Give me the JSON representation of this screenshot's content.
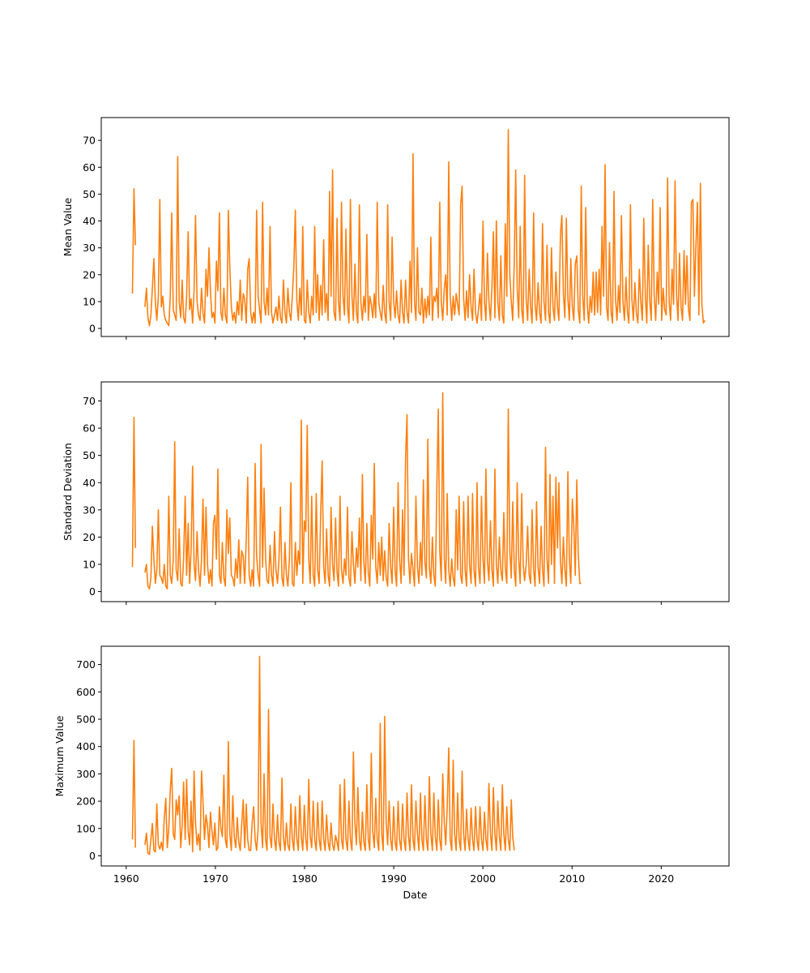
{
  "chart_data": {
    "type": "line",
    "shared_x_axis": true,
    "x_axis": {
      "xlabel": "Date",
      "xlim": [
        1957.2,
        2027.6
      ],
      "xticks": [
        1960,
        1970,
        1980,
        1990,
        2000,
        2010,
        2020
      ]
    },
    "line_color": "#ff7f0e",
    "grid": false,
    "series_sampling": "approximate monthly values, one point every 2 months",
    "panels": [
      {
        "ylabel": "Mean Value",
        "ylim": [
          -3,
          78.5
        ],
        "yticks": [
          0,
          10,
          20,
          30,
          40,
          50,
          60,
          70
        ],
        "segments": [
          {
            "x_start": 1960.7,
            "x_step": 0.167,
            "values": [
              13,
              52,
              31
            ]
          },
          {
            "x_start": 1962.1,
            "x_step": 0.167,
            "values": [
              8,
              15,
              4,
              1,
              5,
              15,
              26,
              10,
              3,
              12,
              48,
              8,
              12,
              5,
              3,
              2,
              1,
              12,
              43,
              7,
              5,
              3,
              64,
              10,
              4,
              18,
              4,
              2,
              12,
              36,
              7,
              11,
              2,
              14,
              42,
              10,
              5,
              3,
              15,
              6,
              2,
              22,
              12,
              30,
              14,
              4,
              6,
              2,
              25,
              14,
              43,
              6,
              3,
              15,
              5,
              2,
              44,
              23,
              8,
              3,
              6,
              2,
              10,
              5,
              18,
              3,
              13,
              11,
              2,
              22,
              26,
              6,
              2,
              6,
              2,
              44,
              12,
              7,
              2,
              47,
              10,
              5,
              15,
              5,
              38,
              6,
              2,
              5,
              8,
              3,
              12,
              4,
              2,
              18,
              6,
              2,
              15,
              6,
              3,
              12,
              23,
              44,
              10,
              3,
              15,
              5,
              38,
              3,
              2,
              18,
              6,
              2,
              12,
              5,
              38,
              6,
              20,
              3,
              16,
              5,
              33,
              6,
              13,
              3,
              51,
              12,
              59,
              6,
              3,
              41,
              10,
              3,
              47,
              12,
              5,
              37,
              8,
              2,
              48,
              12,
              3,
              24,
              6,
              2,
              46,
              10,
              3,
              12,
              6,
              35,
              3,
              12,
              9,
              4,
              13,
              4,
              47,
              10,
              6,
              3,
              16,
              6,
              2,
              46,
              10,
              3,
              34,
              10,
              4,
              14,
              5,
              2,
              18,
              6,
              2,
              18,
              6,
              2,
              25,
              6,
              65,
              10,
              3,
              30,
              6,
              5,
              15,
              2,
              11,
              4,
              12,
              5,
              34,
              3,
              12,
              10,
              15,
              4,
              47,
              10,
              3,
              15,
              20,
              5,
              62,
              12,
              3,
              12,
              5,
              13,
              9,
              5,
              46,
              53,
              11,
              3,
              14,
              4,
              20,
              8,
              3,
              22,
              6,
              2,
              7,
              13,
              3,
              40,
              10,
              3,
              28,
              10,
              3,
              15,
              36,
              4,
              40,
              10,
              3,
              27,
              5,
              2,
              39,
              12,
              74,
              20,
              10,
              3,
              25,
              59,
              15,
              4,
              38,
              7,
              2,
              57,
              11,
              3,
              22,
              8,
              2,
              43,
              9,
              3,
              17,
              6,
              2,
              39,
              10,
              3,
              31,
              6,
              2,
              30,
              8,
              3,
              21,
              8,
              3,
              35,
              42,
              13,
              4,
              41,
              11,
              3,
              26,
              8,
              3,
              24,
              27,
              7,
              2,
              53,
              12,
              3,
              45,
              9,
              2,
              12,
              6,
              21,
              5,
              21,
              6,
              22,
              5,
              38,
              12,
              61,
              8,
              3,
              32,
              6,
              2,
              51,
              11,
              3,
              16,
              6,
              42,
              10,
              3,
              19,
              6,
              2,
              46,
              11,
              3,
              17,
              6,
              2,
              22,
              10,
              3,
              41,
              12,
              2,
              31,
              10,
              3,
              48,
              12,
              3,
              21,
              9,
              45,
              3,
              15,
              7,
              5,
              56,
              10,
              3,
              22,
              9,
              55,
              12,
              3,
              28,
              8,
              3,
              29,
              9,
              27,
              7,
              3,
              47,
              48,
              12,
              31,
              47,
              5,
              54,
              9,
              2,
              3
            ]
          }
        ]
      },
      {
        "ylabel": "Standard Deviation",
        "ylim": [
          -3.7,
          77
        ],
        "yticks": [
          0,
          10,
          20,
          30,
          40,
          50,
          60,
          70
        ],
        "segments": [
          {
            "x_start": 1960.7,
            "x_step": 0.167,
            "values": [
              9,
              64,
              16
            ]
          },
          {
            "x_start": 1962.1,
            "x_step": 0.167,
            "values": [
              7,
              10,
              2,
              1,
              5,
              24,
              12,
              3,
              8,
              30,
              6,
              5,
              3,
              10,
              2,
              1,
              35,
              6,
              3,
              12,
              55,
              8,
              4,
              23,
              3,
              2,
              12,
              35,
              6,
              25,
              3,
              15,
              46,
              10,
              4,
              22,
              8,
              2,
              12,
              34,
              6,
              31,
              10,
              3,
              8,
              2,
              25,
              28,
              12,
              45,
              6,
              3,
              18,
              5,
              2,
              30,
              14,
              27,
              6,
              5,
              2,
              12,
              5,
              19,
              3,
              15,
              13,
              3,
              19,
              42,
              6,
              2,
              8,
              2,
              47,
              13,
              6,
              2,
              54,
              9,
              38,
              12,
              4,
              3,
              17,
              6,
              2,
              22,
              8,
              3,
              12,
              31,
              5,
              2,
              18,
              6,
              2,
              12,
              40,
              3,
              2,
              18,
              6,
              15,
              10,
              63,
              3,
              26,
              22,
              61,
              12,
              3,
              35,
              6,
              2,
              36,
              8,
              3,
              28,
              48,
              9,
              3,
              23,
              6,
              2,
              31,
              10,
              4,
              27,
              7,
              2,
              35,
              8,
              3,
              12,
              6,
              31,
              5,
              2,
              22,
              10,
              3,
              16,
              9,
              27,
              4,
              43,
              11,
              3,
              25,
              7,
              2,
              28,
              12,
              47,
              9,
              3,
              18,
              6,
              20,
              4,
              15,
              5,
              2,
              25,
              9,
              3,
              31,
              8,
              2,
              40,
              12,
              3,
              30,
              6,
              49,
              65,
              12,
              3,
              14,
              8,
              2,
              35,
              9,
              3,
              18,
              6,
              41,
              11,
              5,
              56,
              9,
              3,
              20,
              6,
              2,
              38,
              67,
              15,
              4,
              73,
              12,
              3,
              36,
              8,
              2,
              12,
              5,
              2,
              30,
              8,
              35,
              6,
              3,
              33,
              8,
              2,
              35,
              10,
              3,
              36,
              8,
              2,
              40,
              9,
              3,
              35,
              12,
              3,
              45,
              11,
              4,
              26,
              8,
              2,
              45,
              10,
              3,
              20,
              8,
              4,
              29,
              9,
              3,
              67,
              15,
              5,
              33,
              8,
              2,
              40,
              12,
              3,
              36,
              10,
              4,
              10,
              24,
              6,
              3,
              30,
              8,
              2,
              33,
              9,
              3,
              24,
              8,
              2,
              53,
              12,
              3,
              43,
              10,
              35,
              3,
              42,
              16,
              40,
              11,
              3,
              20,
              8,
              2,
              44,
              12,
              3,
              34,
              24,
              6,
              41,
              14,
              3,
              3
            ]
          }
        ]
      },
      {
        "ylabel": "Maximum Value",
        "ylim": [
          -37,
          767
        ],
        "yticks": [
          0,
          100,
          200,
          300,
          400,
          500,
          600,
          700
        ],
        "segments": [
          {
            "x_start": 1960.7,
            "x_step": 0.167,
            "values": [
              60,
              423,
              30
            ]
          },
          {
            "x_start": 1962.1,
            "x_step": 0.167,
            "values": [
              40,
              83,
              10,
              5,
              60,
              118,
              20,
              15,
              190,
              40,
              25,
              50,
              20,
              140,
              210,
              30,
              100,
              240,
              320,
              80,
              60,
              205,
              150,
              220,
              30,
              110,
              270,
              60,
              280,
              90,
              40,
              200,
              15,
              310,
              120,
              40,
              80,
              20,
              310,
              200,
              60,
              150,
              110,
              30,
              160,
              90,
              40,
              120,
              20,
              30,
              180,
              100,
              70,
              295,
              60,
              30,
              418,
              80,
              20,
              220,
              70,
              30,
              140,
              50,
              20,
              115,
              205,
              30,
              190,
              60,
              20,
              20,
              120,
              180,
              60,
              20,
              100,
              730,
              120,
              30,
              300,
              60,
              20,
              536,
              70,
              30,
              190,
              60,
              20,
              150,
              50,
              20,
              285,
              70,
              20,
              120,
              40,
              20,
              190,
              60,
              20,
              180,
              60,
              20,
              220,
              70,
              20,
              185,
              60,
              20,
              280,
              70,
              30,
              200,
              60,
              20,
              195,
              60,
              20,
              200,
              60,
              20,
              150,
              50,
              20,
              120,
              40,
              20,
              75,
              50,
              20,
              260,
              60,
              25,
              280,
              60,
              20,
              200,
              60,
              20,
              380,
              120,
              40,
              250,
              60,
              20,
              160,
              50,
              20,
              260,
              60,
              20,
              375,
              90,
              30,
              210,
              60,
              20,
              485,
              80,
              20,
              510,
              120,
              40,
              200,
              60,
              20,
              180,
              50,
              20,
              200,
              60,
              20,
              190,
              60,
              20,
              230,
              70,
              20,
              260,
              60,
              20,
              200,
              80,
              20,
              230,
              60,
              20,
              220,
              60,
              20,
              290,
              80,
              20,
              230,
              70,
              20,
              205,
              60,
              20,
              300,
              120,
              40,
              180,
              395,
              60,
              20,
              350,
              80,
              20,
              230,
              60,
              20,
              310,
              80,
              20,
              170,
              60,
              20,
              175,
              60,
              20,
              180,
              60,
              20,
              180,
              60,
              20,
              160,
              60,
              20,
              265,
              80,
              20,
              250,
              80,
              20,
              200,
              70,
              20,
              260,
              80,
              20,
              180,
              60,
              20,
              205,
              70,
              20
            ]
          }
        ]
      }
    ]
  }
}
